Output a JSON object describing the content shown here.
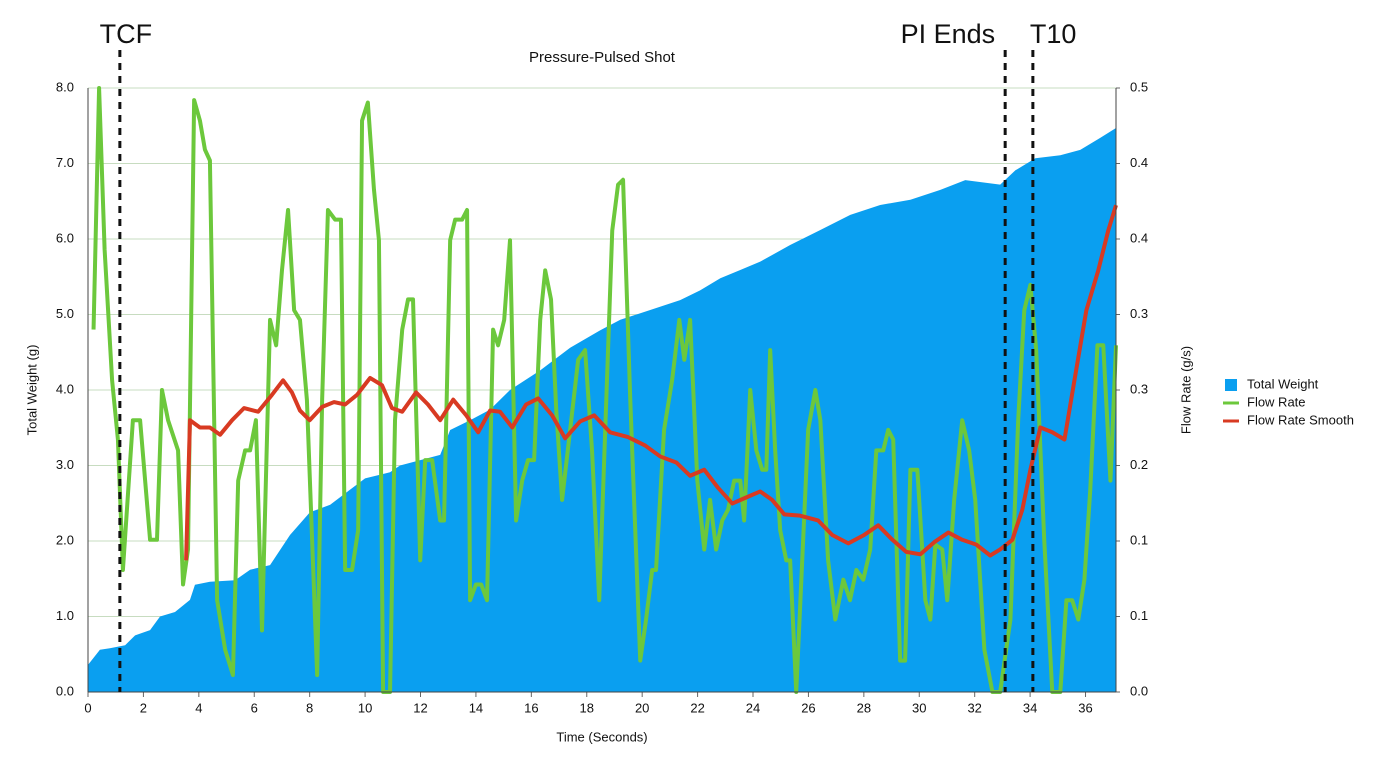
{
  "chart_data": {
    "type": "line",
    "title": "Pressure-Pulsed Shot",
    "xlabel": "Time (Seconds)",
    "ylabel": "Total Weight (g)",
    "y2label": "Flow Rate (g/s)",
    "xlim": [
      0,
      37.1
    ],
    "xticks": [
      0,
      2,
      4,
      6,
      8,
      10,
      12,
      14,
      16,
      18,
      20,
      22,
      24,
      26,
      28,
      30,
      32,
      34,
      36
    ],
    "ylim": [
      0,
      8
    ],
    "yticks": [
      {
        "value": 0,
        "label": "0.0"
      },
      {
        "value": 1,
        "label": "1.0"
      },
      {
        "value": 2,
        "label": "2.0"
      },
      {
        "value": 3,
        "label": "3.0"
      },
      {
        "value": 4,
        "label": "4.0"
      },
      {
        "value": 5,
        "label": "5.0"
      },
      {
        "value": 6,
        "label": "6.0"
      },
      {
        "value": 7,
        "label": "7.0"
      },
      {
        "value": 8,
        "label": "8.0"
      }
    ],
    "y2lim": [
      0,
      0.5
    ],
    "y2ticks": [
      {
        "value": 0,
        "label": "0.0"
      },
      {
        "value": 0.0625,
        "label": "0.1"
      },
      {
        "value": 0.125,
        "label": "0.1"
      },
      {
        "value": 0.1875,
        "label": "0.2"
      },
      {
        "value": 0.25,
        "label": "0.3"
      },
      {
        "value": 0.3125,
        "label": "0.3"
      },
      {
        "value": 0.375,
        "label": "0.4"
      },
      {
        "value": 0.4375,
        "label": "0.4"
      },
      {
        "value": 0.5,
        "label": "0.5"
      }
    ],
    "grid": true,
    "legend": "right",
    "annotations": [
      {
        "label": "TCF",
        "x": 1.15
      },
      {
        "label": "PI Ends",
        "x": 33.1
      },
      {
        "label": "T10",
        "x": 34.1
      }
    ],
    "series": [
      {
        "name": "Total Weight",
        "color": "#0a9ff0",
        "kind": "area",
        "x": [
          0,
          0.43,
          0.79,
          1.34,
          1.7,
          2.24,
          2.6,
          3.14,
          3.68,
          3.86,
          4.4,
          5.31,
          5.85,
          6.57,
          7.29,
          8.01,
          8.74,
          9.46,
          10.0,
          10.9,
          11.26,
          12.71,
          13.07,
          13.79,
          14.51,
          15.23,
          16.32,
          17.4,
          18.48,
          19.21,
          20.29,
          21.37,
          22.09,
          22.82,
          23.54,
          24.26,
          25.34,
          26.43,
          27.51,
          28.59,
          29.68,
          30.76,
          31.66,
          32.92,
          33.47,
          34.19,
          35.09,
          35.81,
          36.53,
          37.1
        ],
        "values": [
          0.36,
          0.56,
          0.58,
          0.62,
          0.75,
          0.82,
          1.0,
          1.06,
          1.22,
          1.42,
          1.46,
          1.48,
          1.62,
          1.68,
          2.08,
          2.38,
          2.48,
          2.68,
          2.83,
          2.91,
          3.0,
          3.14,
          3.47,
          3.6,
          3.74,
          4.0,
          4.26,
          4.56,
          4.79,
          4.93,
          5.06,
          5.19,
          5.32,
          5.48,
          5.59,
          5.7,
          5.92,
          6.12,
          6.32,
          6.45,
          6.52,
          6.65,
          6.78,
          6.72,
          6.91,
          7.07,
          7.11,
          7.18,
          7.34,
          7.47
        ]
      },
      {
        "name": "Flow Rate",
        "color": "#6cc83c",
        "kind": "line",
        "axis": "y2",
        "x": [
          0.2,
          0.4,
          0.6,
          0.87,
          1.08,
          1.26,
          1.62,
          1.88,
          2.24,
          2.49,
          2.67,
          2.89,
          3.25,
          3.43,
          3.61,
          3.83,
          4.04,
          4.22,
          4.4,
          4.66,
          4.95,
          5.23,
          5.42,
          5.67,
          5.85,
          6.06,
          6.28,
          6.57,
          6.79,
          7.0,
          7.22,
          7.44,
          7.65,
          7.9,
          8.27,
          8.45,
          8.66,
          8.92,
          9.13,
          9.28,
          9.53,
          9.75,
          9.89,
          10.1,
          10.32,
          10.5,
          10.65,
          10.9,
          11.08,
          11.34,
          11.55,
          11.73,
          11.99,
          12.17,
          12.42,
          12.71,
          12.85,
          13.07,
          13.25,
          13.5,
          13.68,
          13.79,
          14.0,
          14.19,
          14.4,
          14.62,
          14.8,
          15.02,
          15.23,
          15.45,
          15.67,
          15.88,
          16.1,
          16.32,
          16.5,
          16.71,
          16.9,
          17.11,
          17.4,
          17.69,
          17.94,
          18.19,
          18.45,
          18.92,
          19.13,
          19.31,
          19.57,
          19.93,
          20.14,
          20.36,
          20.5,
          20.79,
          21.08,
          21.34,
          21.52,
          21.73,
          21.99,
          22.24,
          22.45,
          22.67,
          22.89,
          23.1,
          23.32,
          23.54,
          23.68,
          23.9,
          24.12,
          24.33,
          24.48,
          24.62,
          24.8,
          24.98,
          25.2,
          25.34,
          25.56,
          25.99,
          26.25,
          26.43,
          26.71,
          26.97,
          27.26,
          27.5,
          27.73,
          27.98,
          28.23,
          28.45,
          28.7,
          28.88,
          29.06,
          29.31,
          29.49,
          29.68,
          29.93,
          30.22,
          30.4,
          30.58,
          30.83,
          31.01,
          31.26,
          31.55,
          31.8,
          32.02,
          32.35,
          32.64,
          32.92,
          33.29,
          33.57,
          33.79,
          34.01,
          34.22,
          34.51,
          34.8,
          35.09,
          35.31,
          35.52,
          35.74,
          35.96,
          36.17,
          36.43,
          36.64,
          36.9,
          37.1
        ],
        "values": [
          0.3,
          0.5,
          0.366,
          0.258,
          0.209,
          0.101,
          0.225,
          0.225,
          0.126,
          0.126,
          0.25,
          0.225,
          0.2,
          0.089,
          0.118,
          0.49,
          0.473,
          0.449,
          0.44,
          0.076,
          0.035,
          0.014,
          0.175,
          0.2,
          0.2,
          0.225,
          0.051,
          0.308,
          0.287,
          0.349,
          0.399,
          0.316,
          0.308,
          0.242,
          0.014,
          0.242,
          0.399,
          0.391,
          0.391,
          0.101,
          0.101,
          0.134,
          0.473,
          0.488,
          0.416,
          0.374,
          0,
          0,
          0.225,
          0.3,
          0.325,
          0.325,
          0.109,
          0.192,
          0.192,
          0.142,
          0.142,
          0.374,
          0.391,
          0.391,
          0.399,
          0.076,
          0.089,
          0.089,
          0.076,
          0.3,
          0.287,
          0.308,
          0.374,
          0.142,
          0.175,
          0.192,
          0.192,
          0.308,
          0.349,
          0.325,
          0.233,
          0.159,
          0.217,
          0.275,
          0.283,
          0.2,
          0.076,
          0.382,
          0.42,
          0.424,
          0.242,
          0.026,
          0.06,
          0.101,
          0.101,
          0.217,
          0.258,
          0.308,
          0.275,
          0.308,
          0.175,
          0.118,
          0.159,
          0.118,
          0.142,
          0.151,
          0.175,
          0.175,
          0.142,
          0.25,
          0.2,
          0.184,
          0.184,
          0.283,
          0.2,
          0.134,
          0.109,
          0.109,
          0,
          0.217,
          0.25,
          0.225,
          0.109,
          0.06,
          0.093,
          0.076,
          0.101,
          0.093,
          0.118,
          0.2,
          0.2,
          0.217,
          0.209,
          0.026,
          0.026,
          0.184,
          0.184,
          0.076,
          0.06,
          0.122,
          0.118,
          0.076,
          0.159,
          0.225,
          0.2,
          0.159,
          0.035,
          0,
          0,
          0.06,
          0.225,
          0.316,
          0.337,
          0.283,
          0.126,
          0,
          0,
          0.076,
          0.076,
          0.06,
          0.093,
          0.167,
          0.287,
          0.287,
          0.175,
          0.287
        ]
      },
      {
        "name": "Flow Rate Smooth",
        "color": "#d83a22",
        "kind": "line",
        "axis": "y2",
        "x": [
          3.54,
          3.68,
          4.04,
          4.4,
          4.77,
          5.2,
          5.63,
          6.14,
          6.64,
          7.04,
          7.36,
          7.65,
          8.0,
          8.45,
          8.88,
          9.28,
          9.71,
          10.18,
          10.61,
          10.97,
          11.34,
          11.84,
          12.27,
          12.71,
          13.18,
          13.65,
          14.08,
          14.51,
          14.87,
          15.31,
          15.81,
          16.25,
          16.75,
          17.22,
          17.76,
          18.27,
          18.84,
          19.49,
          20.11,
          20.65,
          21.23,
          21.73,
          22.24,
          22.74,
          23.25,
          23.75,
          24.26,
          24.69,
          25.13,
          25.7,
          26.35,
          26.86,
          27.44,
          28.01,
          28.52,
          29.03,
          29.53,
          30.04,
          30.54,
          31.05,
          31.55,
          32.06,
          32.56,
          32.92,
          33.36,
          33.72,
          34.01,
          34.37,
          34.8,
          35.24,
          35.6,
          36.03,
          36.46,
          36.82,
          37.1
        ],
        "values": [
          0.109,
          0.225,
          0.219,
          0.219,
          0.213,
          0.225,
          0.235,
          0.232,
          0.246,
          0.258,
          0.248,
          0.233,
          0.225,
          0.236,
          0.24,
          0.238,
          0.246,
          0.26,
          0.254,
          0.235,
          0.232,
          0.248,
          0.238,
          0.225,
          0.242,
          0.229,
          0.215,
          0.233,
          0.232,
          0.219,
          0.238,
          0.243,
          0.229,
          0.21,
          0.224,
          0.229,
          0.215,
          0.211,
          0.204,
          0.195,
          0.19,
          0.179,
          0.184,
          0.169,
          0.156,
          0.161,
          0.166,
          0.159,
          0.147,
          0.146,
          0.142,
          0.13,
          0.123,
          0.13,
          0.138,
          0.126,
          0.116,
          0.114,
          0.124,
          0.132,
          0.126,
          0.122,
          0.113,
          0.118,
          0.126,
          0.151,
          0.184,
          0.219,
          0.215,
          0.209,
          0.258,
          0.316,
          0.349,
          0.382,
          0.403
        ]
      }
    ]
  }
}
